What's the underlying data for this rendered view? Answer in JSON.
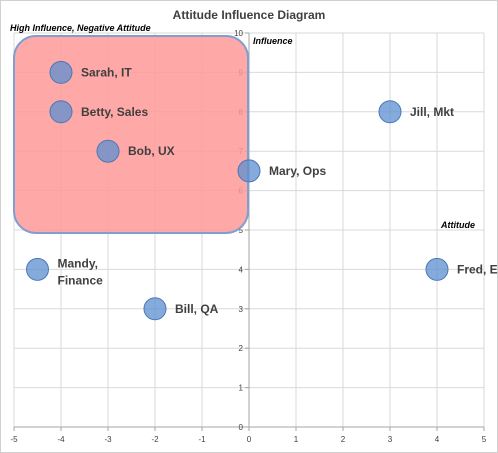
{
  "chart_data": {
    "type": "scatter",
    "title": "Attitude Influence Diagram",
    "xlabel": "Attitude",
    "ylabel": "Influence",
    "xlim": [
      -5,
      5
    ],
    "ylim": [
      0,
      10
    ],
    "x_ticks": [
      -5,
      -4,
      -3,
      -2,
      -1,
      0,
      1,
      2,
      3,
      4,
      5
    ],
    "y_ticks": [
      0,
      1,
      2,
      3,
      4,
      5,
      6,
      7,
      8,
      9,
      10
    ],
    "grid": true,
    "marker_color": "#5b8fd0",
    "points": [
      {
        "x": -4,
        "y": 9,
        "label_lines": [
          "Sarah, IT"
        ]
      },
      {
        "x": -4,
        "y": 8,
        "label_lines": [
          "Betty, Sales"
        ]
      },
      {
        "x": -3,
        "y": 7,
        "label_lines": [
          "Bob, UX"
        ]
      },
      {
        "x": 0,
        "y": 6.5,
        "label_lines": [
          "Mary, Ops"
        ]
      },
      {
        "x": 3,
        "y": 8,
        "label_lines": [
          "Jill, Mkt"
        ]
      },
      {
        "x": -4.5,
        "y": 4,
        "label_lines": [
          "Mandy,",
          "Finance"
        ]
      },
      {
        "x": 4,
        "y": 4,
        "label_lines": [
          "Fred, Eng"
        ]
      },
      {
        "x": -2,
        "y": 3,
        "label_lines": [
          "Bill, QA"
        ]
      }
    ],
    "region": {
      "label": "High Influence, Negative Attitude",
      "x_range": [
        -5,
        0
      ],
      "y_range": [
        5,
        10
      ],
      "fill": "#ff9999",
      "stroke": "#7f9fd0"
    }
  }
}
